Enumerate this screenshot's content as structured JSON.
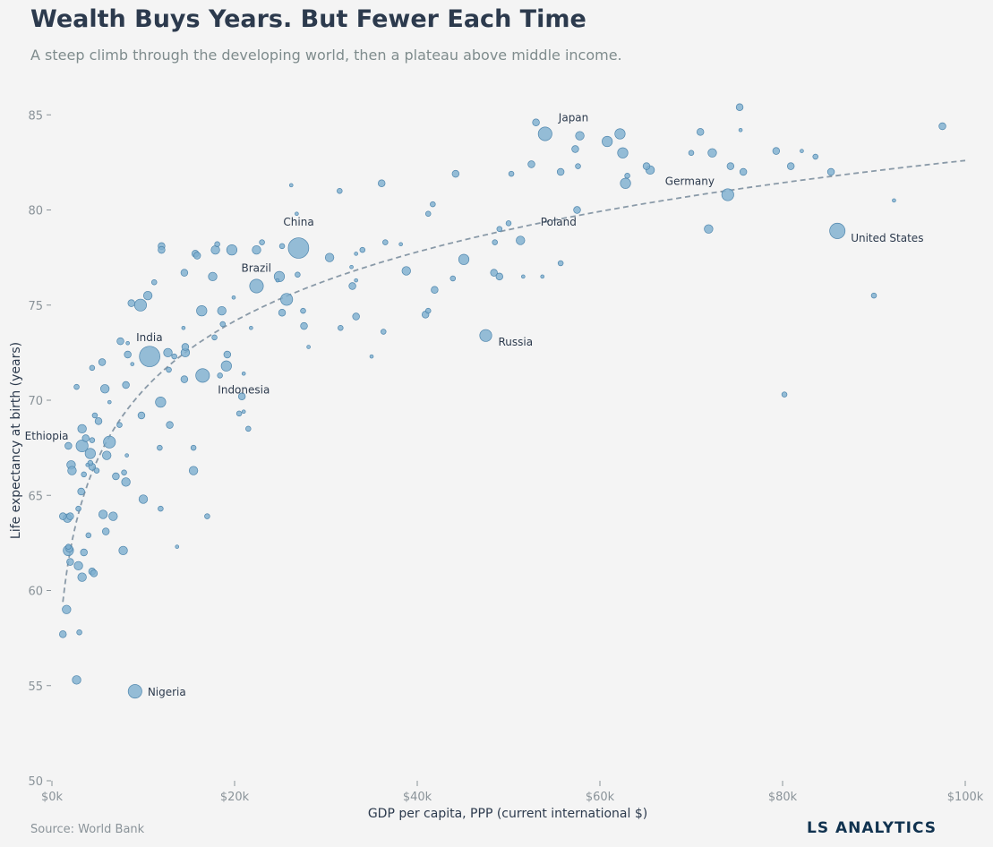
{
  "header": {
    "title": "Wealth Buys Years. But Fewer Each Time",
    "subtitle": "A steep climb through the developing world, then a plateau above middle income."
  },
  "footer": {
    "source": "Source: World Bank",
    "brand": "LS ANALYTICS"
  },
  "colors": {
    "background": "#f4f4f4",
    "point_fill": "#7fb0d0",
    "point_stroke": "#4f86ad",
    "trend_line": "#8a9aa8",
    "axis_text": "#8a9399",
    "label_text": "#2c3a4d"
  },
  "chart_data": {
    "type": "scatter",
    "xlabel": "GDP per capita, PPP (current international $)",
    "ylabel": "Life expectancy at birth (years)",
    "xlim": [
      0,
      100000
    ],
    "ylim": [
      50,
      86
    ],
    "x_ticks": [
      {
        "value": 0,
        "label": "$0k"
      },
      {
        "value": 20000,
        "label": "$20k"
      },
      {
        "value": 40000,
        "label": "$40k"
      },
      {
        "value": 60000,
        "label": "$60k"
      },
      {
        "value": 80000,
        "label": "$80k"
      },
      {
        "value": 100000,
        "label": "$100k"
      }
    ],
    "y_ticks": [
      {
        "value": 50,
        "label": "50"
      },
      {
        "value": 55,
        "label": "55"
      },
      {
        "value": 60,
        "label": "60"
      },
      {
        "value": 65,
        "label": "65"
      },
      {
        "value": 70,
        "label": "70"
      },
      {
        "value": 75,
        "label": "75"
      },
      {
        "value": 80,
        "label": "80"
      },
      {
        "value": 85,
        "label": "85"
      }
    ],
    "grid": false,
    "bubble_size_meaning": "population",
    "trendline": {
      "type": "logarithmic",
      "x_from": 1200,
      "x_to": 100000,
      "y_at_1200": 59.4,
      "y_at_100000": 82.6
    },
    "labeled_points": [
      {
        "label": "Japan",
        "x": 54000,
        "y": 84.0,
        "size": 7
      },
      {
        "label": "Germany",
        "x": 74000,
        "y": 80.8,
        "size": 6
      },
      {
        "label": "China",
        "x": 27000,
        "y": 78.0,
        "size": 11
      },
      {
        "label": "Poland",
        "x": 49000,
        "y": 79.0,
        "size": 2
      },
      {
        "label": "United States",
        "x": 86000,
        "y": 78.9,
        "size": 8
      },
      {
        "label": "Brazil",
        "x": 22400,
        "y": 76.0,
        "size": 7
      },
      {
        "label": "India",
        "x": 10700,
        "y": 72.3,
        "size": 11
      },
      {
        "label": "Russia",
        "x": 47500,
        "y": 73.4,
        "size": 6
      },
      {
        "label": "Indonesia",
        "x": 16500,
        "y": 71.3,
        "size": 7
      },
      {
        "label": "Ethiopia",
        "x": 3300,
        "y": 67.6,
        "size": 6
      },
      {
        "label": "Nigeria",
        "x": 9100,
        "y": 54.7,
        "size": 7
      }
    ],
    "points": [
      {
        "x": 75300,
        "y": 85.4,
        "size": 3
      },
      {
        "x": 97500,
        "y": 84.4,
        "size": 3
      },
      {
        "x": 53000,
        "y": 84.6,
        "size": 3
      },
      {
        "x": 62200,
        "y": 84.0,
        "size": 5
      },
      {
        "x": 57800,
        "y": 83.9,
        "size": 4
      },
      {
        "x": 60800,
        "y": 83.6,
        "size": 5
      },
      {
        "x": 71000,
        "y": 84.1,
        "size": 3
      },
      {
        "x": 57300,
        "y": 83.2,
        "size": 3
      },
      {
        "x": 62500,
        "y": 83.0,
        "size": 5
      },
      {
        "x": 72300,
        "y": 83.0,
        "size": 4
      },
      {
        "x": 79300,
        "y": 83.1,
        "size": 3
      },
      {
        "x": 70000,
        "y": 83.0,
        "size": 2
      },
      {
        "x": 82100,
        "y": 83.1,
        "size": 1
      },
      {
        "x": 83600,
        "y": 82.8,
        "size": 2
      },
      {
        "x": 75400,
        "y": 84.2,
        "size": 1
      },
      {
        "x": 52500,
        "y": 82.4,
        "size": 3
      },
      {
        "x": 55700,
        "y": 82.0,
        "size": 3
      },
      {
        "x": 57600,
        "y": 82.3,
        "size": 2
      },
      {
        "x": 65100,
        "y": 82.3,
        "size": 3
      },
      {
        "x": 65500,
        "y": 82.1,
        "size": 4
      },
      {
        "x": 74300,
        "y": 82.3,
        "size": 3
      },
      {
        "x": 75700,
        "y": 82.0,
        "size": 3
      },
      {
        "x": 80900,
        "y": 82.3,
        "size": 3
      },
      {
        "x": 85300,
        "y": 82.0,
        "size": 3
      },
      {
        "x": 44200,
        "y": 81.9,
        "size": 3
      },
      {
        "x": 50300,
        "y": 81.9,
        "size": 2
      },
      {
        "x": 63000,
        "y": 81.8,
        "size": 2
      },
      {
        "x": 62800,
        "y": 81.4,
        "size": 5
      },
      {
        "x": 36100,
        "y": 81.4,
        "size": 3
      },
      {
        "x": 31500,
        "y": 81.0,
        "size": 2
      },
      {
        "x": 26200,
        "y": 81.3,
        "size": 1
      },
      {
        "x": 92200,
        "y": 80.5,
        "size": 1
      },
      {
        "x": 57500,
        "y": 80.0,
        "size": 3
      },
      {
        "x": 41700,
        "y": 80.3,
        "size": 2
      },
      {
        "x": 41200,
        "y": 79.8,
        "size": 2
      },
      {
        "x": 26800,
        "y": 79.8,
        "size": 1
      },
      {
        "x": 50000,
        "y": 79.3,
        "size": 2
      },
      {
        "x": 71900,
        "y": 79.0,
        "size": 4
      },
      {
        "x": 48500,
        "y": 78.3,
        "size": 2
      },
      {
        "x": 51300,
        "y": 78.4,
        "size": 4
      },
      {
        "x": 36500,
        "y": 78.3,
        "size": 2
      },
      {
        "x": 38200,
        "y": 78.2,
        "size": 1
      },
      {
        "x": 23000,
        "y": 78.3,
        "size": 2
      },
      {
        "x": 25200,
        "y": 78.1,
        "size": 2
      },
      {
        "x": 18100,
        "y": 78.2,
        "size": 2
      },
      {
        "x": 12000,
        "y": 78.1,
        "size": 3
      },
      {
        "x": 12000,
        "y": 77.9,
        "size": 3
      },
      {
        "x": 17900,
        "y": 77.9,
        "size": 4
      },
      {
        "x": 19700,
        "y": 77.9,
        "size": 5
      },
      {
        "x": 22400,
        "y": 77.9,
        "size": 4
      },
      {
        "x": 15700,
        "y": 77.7,
        "size": 3
      },
      {
        "x": 15900,
        "y": 77.6,
        "size": 3
      },
      {
        "x": 34000,
        "y": 77.9,
        "size": 2
      },
      {
        "x": 33300,
        "y": 77.7,
        "size": 1
      },
      {
        "x": 30400,
        "y": 77.5,
        "size": 4
      },
      {
        "x": 55700,
        "y": 77.2,
        "size": 2
      },
      {
        "x": 38800,
        "y": 76.8,
        "size": 4
      },
      {
        "x": 48400,
        "y": 76.7,
        "size": 3
      },
      {
        "x": 49000,
        "y": 76.5,
        "size": 3
      },
      {
        "x": 51600,
        "y": 76.5,
        "size": 1
      },
      {
        "x": 53700,
        "y": 76.5,
        "size": 1
      },
      {
        "x": 43900,
        "y": 76.4,
        "size": 2
      },
      {
        "x": 45100,
        "y": 77.4,
        "size": 5
      },
      {
        "x": 14500,
        "y": 76.7,
        "size": 3
      },
      {
        "x": 17600,
        "y": 76.5,
        "size": 4
      },
      {
        "x": 24900,
        "y": 76.5,
        "size": 5
      },
      {
        "x": 26900,
        "y": 76.6,
        "size": 2
      },
      {
        "x": 32800,
        "y": 77.0,
        "size": 1
      },
      {
        "x": 11200,
        "y": 76.2,
        "size": 2
      },
      {
        "x": 24700,
        "y": 76.3,
        "size": 1
      },
      {
        "x": 33300,
        "y": 76.3,
        "size": 1
      },
      {
        "x": 32900,
        "y": 76.0,
        "size": 3
      },
      {
        "x": 25700,
        "y": 75.3,
        "size": 6
      },
      {
        "x": 41900,
        "y": 75.8,
        "size": 3
      },
      {
        "x": 10500,
        "y": 75.5,
        "size": 4
      },
      {
        "x": 8700,
        "y": 75.1,
        "size": 3
      },
      {
        "x": 19900,
        "y": 75.4,
        "size": 1
      },
      {
        "x": 90000,
        "y": 75.5,
        "size": 2
      },
      {
        "x": 9700,
        "y": 75.0,
        "size": 6
      },
      {
        "x": 16400,
        "y": 74.7,
        "size": 5
      },
      {
        "x": 18600,
        "y": 74.7,
        "size": 4
      },
      {
        "x": 27500,
        "y": 74.7,
        "size": 2
      },
      {
        "x": 25200,
        "y": 74.6,
        "size": 3
      },
      {
        "x": 40900,
        "y": 74.5,
        "size": 3
      },
      {
        "x": 41200,
        "y": 74.7,
        "size": 2
      },
      {
        "x": 33300,
        "y": 74.4,
        "size": 3
      },
      {
        "x": 18700,
        "y": 74.0,
        "size": 2
      },
      {
        "x": 27600,
        "y": 73.9,
        "size": 3
      },
      {
        "x": 31600,
        "y": 73.8,
        "size": 2
      },
      {
        "x": 21800,
        "y": 73.8,
        "size": 1
      },
      {
        "x": 14400,
        "y": 73.8,
        "size": 1
      },
      {
        "x": 36300,
        "y": 73.6,
        "size": 2
      },
      {
        "x": 17800,
        "y": 73.3,
        "size": 2
      },
      {
        "x": 7500,
        "y": 73.1,
        "size": 3
      },
      {
        "x": 8300,
        "y": 73.0,
        "size": 1
      },
      {
        "x": 28100,
        "y": 72.8,
        "size": 1
      },
      {
        "x": 14600,
        "y": 72.8,
        "size": 3
      },
      {
        "x": 12700,
        "y": 72.5,
        "size": 4
      },
      {
        "x": 14600,
        "y": 72.5,
        "size": 4
      },
      {
        "x": 8300,
        "y": 72.4,
        "size": 3
      },
      {
        "x": 13400,
        "y": 72.3,
        "size": 2
      },
      {
        "x": 19200,
        "y": 72.4,
        "size": 3
      },
      {
        "x": 35000,
        "y": 72.3,
        "size": 1
      },
      {
        "x": 5500,
        "y": 72.0,
        "size": 3
      },
      {
        "x": 8800,
        "y": 71.9,
        "size": 1
      },
      {
        "x": 19100,
        "y": 71.8,
        "size": 5
      },
      {
        "x": 4400,
        "y": 71.7,
        "size": 2
      },
      {
        "x": 12800,
        "y": 71.6,
        "size": 2
      },
      {
        "x": 18400,
        "y": 71.3,
        "size": 2
      },
      {
        "x": 21000,
        "y": 71.4,
        "size": 1
      },
      {
        "x": 14500,
        "y": 71.1,
        "size": 3
      },
      {
        "x": 8100,
        "y": 70.8,
        "size": 3
      },
      {
        "x": 2700,
        "y": 70.7,
        "size": 2
      },
      {
        "x": 5800,
        "y": 70.6,
        "size": 4
      },
      {
        "x": 20800,
        "y": 70.2,
        "size": 3
      },
      {
        "x": 80200,
        "y": 70.3,
        "size": 2
      },
      {
        "x": 11900,
        "y": 69.9,
        "size": 5
      },
      {
        "x": 6300,
        "y": 69.9,
        "size": 1
      },
      {
        "x": 9800,
        "y": 69.2,
        "size": 3
      },
      {
        "x": 4700,
        "y": 69.2,
        "size": 2
      },
      {
        "x": 20500,
        "y": 69.3,
        "size": 2
      },
      {
        "x": 21000,
        "y": 69.4,
        "size": 1
      },
      {
        "x": 5100,
        "y": 68.9,
        "size": 3
      },
      {
        "x": 12900,
        "y": 68.7,
        "size": 3
      },
      {
        "x": 7400,
        "y": 68.7,
        "size": 2
      },
      {
        "x": 3300,
        "y": 68.5,
        "size": 4
      },
      {
        "x": 21500,
        "y": 68.5,
        "size": 2
      },
      {
        "x": 3700,
        "y": 68.0,
        "size": 3
      },
      {
        "x": 4400,
        "y": 67.9,
        "size": 2
      },
      {
        "x": 6300,
        "y": 67.8,
        "size": 6
      },
      {
        "x": 1800,
        "y": 67.6,
        "size": 3
      },
      {
        "x": 11800,
        "y": 67.5,
        "size": 2
      },
      {
        "x": 15500,
        "y": 67.5,
        "size": 2
      },
      {
        "x": 4200,
        "y": 67.2,
        "size": 5
      },
      {
        "x": 6000,
        "y": 67.1,
        "size": 4
      },
      {
        "x": 8200,
        "y": 67.1,
        "size": 1
      },
      {
        "x": 4200,
        "y": 66.7,
        "size": 2
      },
      {
        "x": 2100,
        "y": 66.6,
        "size": 4
      },
      {
        "x": 3900,
        "y": 66.6,
        "size": 1
      },
      {
        "x": 4400,
        "y": 66.5,
        "size": 3
      },
      {
        "x": 2200,
        "y": 66.3,
        "size": 4
      },
      {
        "x": 4900,
        "y": 66.3,
        "size": 2
      },
      {
        "x": 15500,
        "y": 66.3,
        "size": 4
      },
      {
        "x": 7900,
        "y": 66.2,
        "size": 2
      },
      {
        "x": 3500,
        "y": 66.1,
        "size": 2
      },
      {
        "x": 7000,
        "y": 66.0,
        "size": 3
      },
      {
        "x": 8100,
        "y": 65.7,
        "size": 4
      },
      {
        "x": 3200,
        "y": 65.2,
        "size": 3
      },
      {
        "x": 10000,
        "y": 64.8,
        "size": 4
      },
      {
        "x": 2900,
        "y": 64.3,
        "size": 2
      },
      {
        "x": 11900,
        "y": 64.3,
        "size": 2
      },
      {
        "x": 5600,
        "y": 64.0,
        "size": 4
      },
      {
        "x": 17000,
        "y": 63.9,
        "size": 2
      },
      {
        "x": 1200,
        "y": 63.9,
        "size": 3
      },
      {
        "x": 1700,
        "y": 63.8,
        "size": 4
      },
      {
        "x": 2000,
        "y": 63.9,
        "size": 3
      },
      {
        "x": 6700,
        "y": 63.9,
        "size": 4
      },
      {
        "x": 5900,
        "y": 63.1,
        "size": 3
      },
      {
        "x": 4000,
        "y": 62.9,
        "size": 2
      },
      {
        "x": 13700,
        "y": 62.3,
        "size": 1
      },
      {
        "x": 1800,
        "y": 62.3,
        "size": 2
      },
      {
        "x": 1900,
        "y": 62.2,
        "size": 3
      },
      {
        "x": 1800,
        "y": 62.1,
        "size": 5
      },
      {
        "x": 7800,
        "y": 62.1,
        "size": 4
      },
      {
        "x": 3500,
        "y": 62.0,
        "size": 3
      },
      {
        "x": 2000,
        "y": 61.5,
        "size": 3
      },
      {
        "x": 2900,
        "y": 61.3,
        "size": 4
      },
      {
        "x": 4400,
        "y": 61.0,
        "size": 3
      },
      {
        "x": 4600,
        "y": 60.9,
        "size": 3
      },
      {
        "x": 3300,
        "y": 60.7,
        "size": 4
      },
      {
        "x": 1600,
        "y": 59.0,
        "size": 4
      },
      {
        "x": 3000,
        "y": 57.8,
        "size": 2
      },
      {
        "x": 1200,
        "y": 57.7,
        "size": 3
      },
      {
        "x": 2700,
        "y": 55.3,
        "size": 4
      }
    ]
  }
}
